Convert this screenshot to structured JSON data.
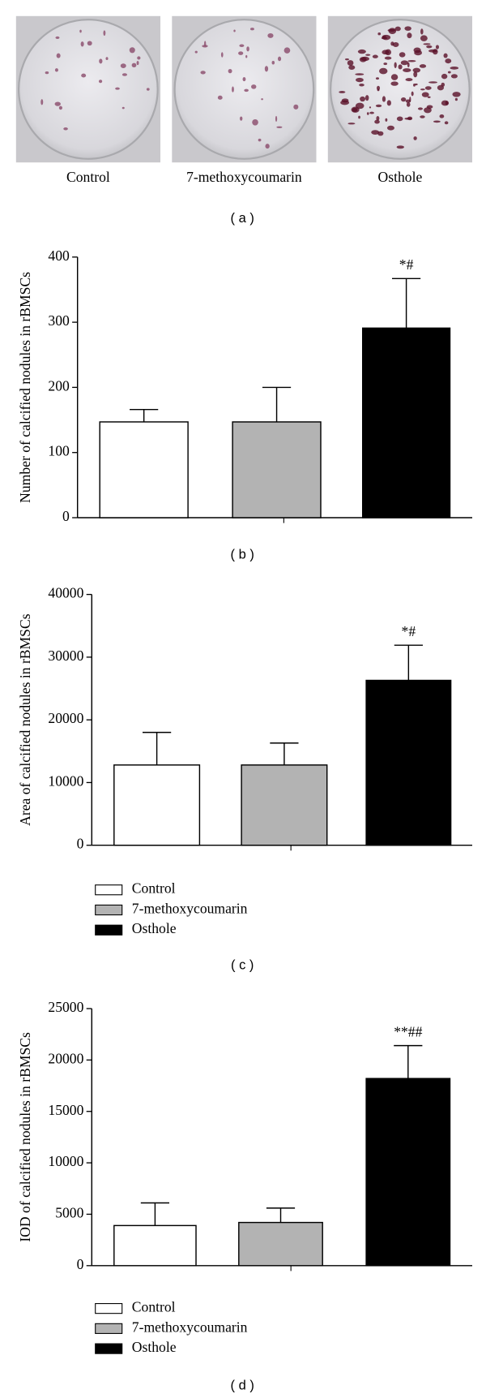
{
  "photos": {
    "labels": [
      "Control",
      "7-methoxycoumarin",
      "Osthole"
    ],
    "caption": "( a )"
  },
  "chart_data": [
    {
      "type": "bar",
      "caption": "( b )",
      "ylabel": "Number of calcified nodules in rBMSCs",
      "categories": [
        null,
        null,
        null
      ],
      "values": [
        147,
        147,
        291
      ],
      "errors": [
        19,
        53,
        76
      ],
      "colors": [
        "#ffffff",
        "#b3b3b3",
        "#000000"
      ],
      "annotation": "*#",
      "ylim": [
        0,
        400
      ],
      "yticks": [
        0,
        100,
        200,
        300,
        400
      ]
    },
    {
      "type": "bar",
      "caption": "( c )",
      "ylabel": "Area of calcified nodules in rBMSCs",
      "categories": [
        null,
        null,
        null
      ],
      "values": [
        12800,
        12800,
        26300
      ],
      "errors": [
        5200,
        3500,
        5600
      ],
      "colors": [
        "#ffffff",
        "#b3b3b3",
        "#000000"
      ],
      "annotation": "*#",
      "legend": [
        "Control",
        "7-methoxycoumarin",
        "Osthole"
      ],
      "ylim": [
        0,
        40000
      ],
      "yticks": [
        0,
        10000,
        20000,
        30000,
        40000
      ]
    },
    {
      "type": "bar",
      "caption": "( d )",
      "ylabel": "IOD of calcified nodules in rBMSCs",
      "categories": [
        null,
        null,
        null
      ],
      "values": [
        3900,
        4200,
        18200
      ],
      "errors": [
        2200,
        1400,
        3200
      ],
      "colors": [
        "#ffffff",
        "#b3b3b3",
        "#000000"
      ],
      "annotation": "**##",
      "legend": [
        "Control",
        "7-methoxycoumarin",
        "Osthole"
      ],
      "ylim": [
        0,
        25000
      ],
      "yticks": [
        0,
        5000,
        10000,
        15000,
        20000,
        25000
      ]
    }
  ]
}
